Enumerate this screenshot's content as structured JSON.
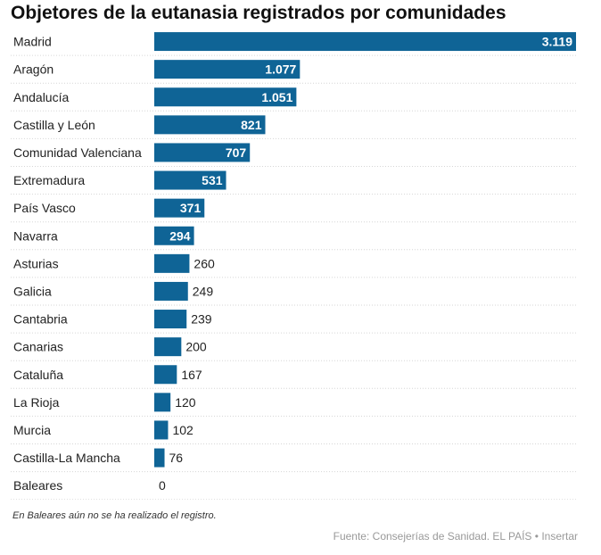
{
  "chart_data": {
    "type": "bar",
    "orientation": "horizontal",
    "title": "Objetores de la eutanasia registrados por comunidades",
    "categories": [
      "Madrid",
      "Aragón",
      "Andalucía",
      "Castilla y León",
      "Comunidad Valenciana",
      "Extremadura",
      "País Vasco",
      "Navarra",
      "Asturias",
      "Galicia",
      "Cantabria",
      "Canarias",
      "Cataluña",
      "La Rioja",
      "Murcia",
      "Castilla-La Mancha",
      "Baleares"
    ],
    "values": [
      3119,
      1077,
      1051,
      821,
      707,
      531,
      371,
      294,
      260,
      249,
      239,
      200,
      167,
      120,
      102,
      76,
      0
    ],
    "value_labels": [
      "3.119",
      "1.077",
      "1.051",
      "821",
      "707",
      "531",
      "371",
      "294",
      "260",
      "249",
      "239",
      "200",
      "167",
      "120",
      "102",
      "76",
      "0"
    ],
    "xlim": [
      0,
      3119
    ],
    "bar_color": "#0f6496",
    "note": "En Baleares aún no se ha realizado el registro."
  },
  "footer": {
    "source": "Fuente: Consejerías de Sanidad. EL PAÍS",
    "separator": " • ",
    "insert_label": "Insertar"
  }
}
